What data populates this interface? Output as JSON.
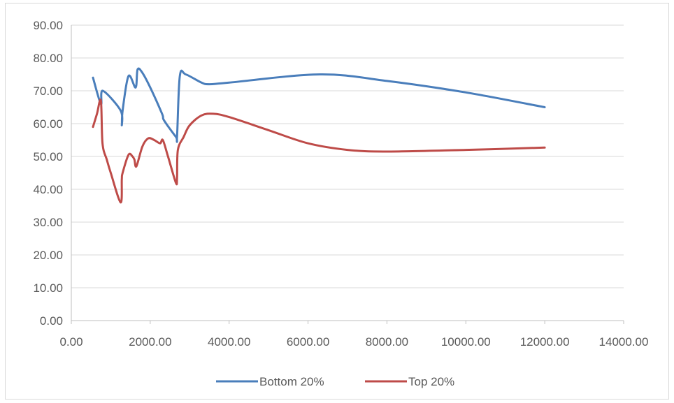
{
  "chart_data": {
    "type": "line",
    "title": "",
    "xlabel": "",
    "ylabel": "",
    "xlim": [
      0,
      14000
    ],
    "ylim": [
      0,
      90
    ],
    "grid": "horizontal",
    "legend_position": "bottom",
    "x_ticks": [
      "0.00",
      "2000.00",
      "4000.00",
      "6000.00",
      "8000.00",
      "10000.00",
      "12000.00",
      "14000.00"
    ],
    "y_ticks": [
      "0.00",
      "10.00",
      "20.00",
      "30.00",
      "40.00",
      "50.00",
      "60.00",
      "70.00",
      "80.00",
      "90.00"
    ],
    "series": [
      {
        "name": "Bottom 20%",
        "color": "#4a7ebb",
        "points": [
          [
            550,
            74
          ],
          [
            750,
            66
          ],
          [
            800,
            70
          ],
          [
            1250,
            64
          ],
          [
            1280,
            59.5
          ],
          [
            1300,
            64
          ],
          [
            1450,
            74.5
          ],
          [
            1630,
            71
          ],
          [
            1680,
            76.5
          ],
          [
            1800,
            75.5
          ],
          [
            2000,
            71
          ],
          [
            2300,
            63
          ],
          [
            2350,
            61
          ],
          [
            2650,
            56
          ],
          [
            2680,
            56
          ],
          [
            2750,
            74.5
          ],
          [
            2900,
            75
          ],
          [
            3300,
            72.5
          ],
          [
            3500,
            72
          ],
          [
            4000,
            72.5
          ],
          [
            6300,
            75
          ],
          [
            8000,
            73
          ],
          [
            10000,
            69.5
          ],
          [
            12000,
            65
          ]
        ]
      },
      {
        "name": "Top 20%",
        "color": "#be4b48",
        "points": [
          [
            550,
            59
          ],
          [
            650,
            63
          ],
          [
            750,
            67
          ],
          [
            790,
            54
          ],
          [
            900,
            49
          ],
          [
            1000,
            45
          ],
          [
            1250,
            36
          ],
          [
            1280,
            43
          ],
          [
            1300,
            45
          ],
          [
            1450,
            50.5
          ],
          [
            1550,
            50
          ],
          [
            1600,
            49
          ],
          [
            1650,
            47
          ],
          [
            1800,
            53
          ],
          [
            1950,
            55.5
          ],
          [
            2100,
            55
          ],
          [
            2250,
            54
          ],
          [
            2320,
            55
          ],
          [
            2450,
            50
          ],
          [
            2650,
            42
          ],
          [
            2680,
            43.5
          ],
          [
            2700,
            52
          ],
          [
            2850,
            56
          ],
          [
            3000,
            59.5
          ],
          [
            3300,
            62.5
          ],
          [
            3600,
            63
          ],
          [
            4000,
            62
          ],
          [
            5000,
            58
          ],
          [
            6000,
            54
          ],
          [
            7000,
            52
          ],
          [
            8000,
            51.5
          ],
          [
            10000,
            52
          ],
          [
            12000,
            52.7
          ]
        ]
      }
    ]
  }
}
